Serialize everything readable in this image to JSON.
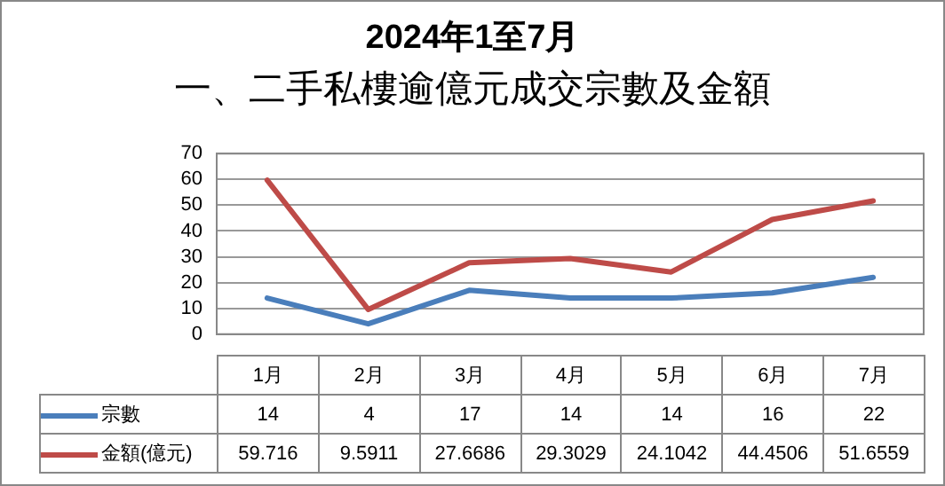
{
  "chart_data": {
    "type": "line",
    "title": "2024年1至7月",
    "subtitle": "一、二手私樓逾億元成交宗數及金額",
    "categories": [
      "1月",
      "2月",
      "3月",
      "4月",
      "5月",
      "6月",
      "7月"
    ],
    "series": [
      {
        "name": "宗數",
        "color": "#4a7ebb",
        "values": [
          14,
          4,
          17,
          14,
          14,
          16,
          22
        ]
      },
      {
        "name": "金額(億元)",
        "color": "#be4b48",
        "values": [
          59.716,
          9.5911,
          27.6686,
          29.3029,
          24.1042,
          44.4506,
          51.6559
        ]
      }
    ],
    "ylim": [
      0,
      70
    ],
    "yticks": [
      0,
      10,
      20,
      30,
      40,
      50,
      60,
      70
    ],
    "grid": "y",
    "legend": "bottom",
    "marker": "none",
    "line_style": "solid",
    "data_labels": true
  }
}
